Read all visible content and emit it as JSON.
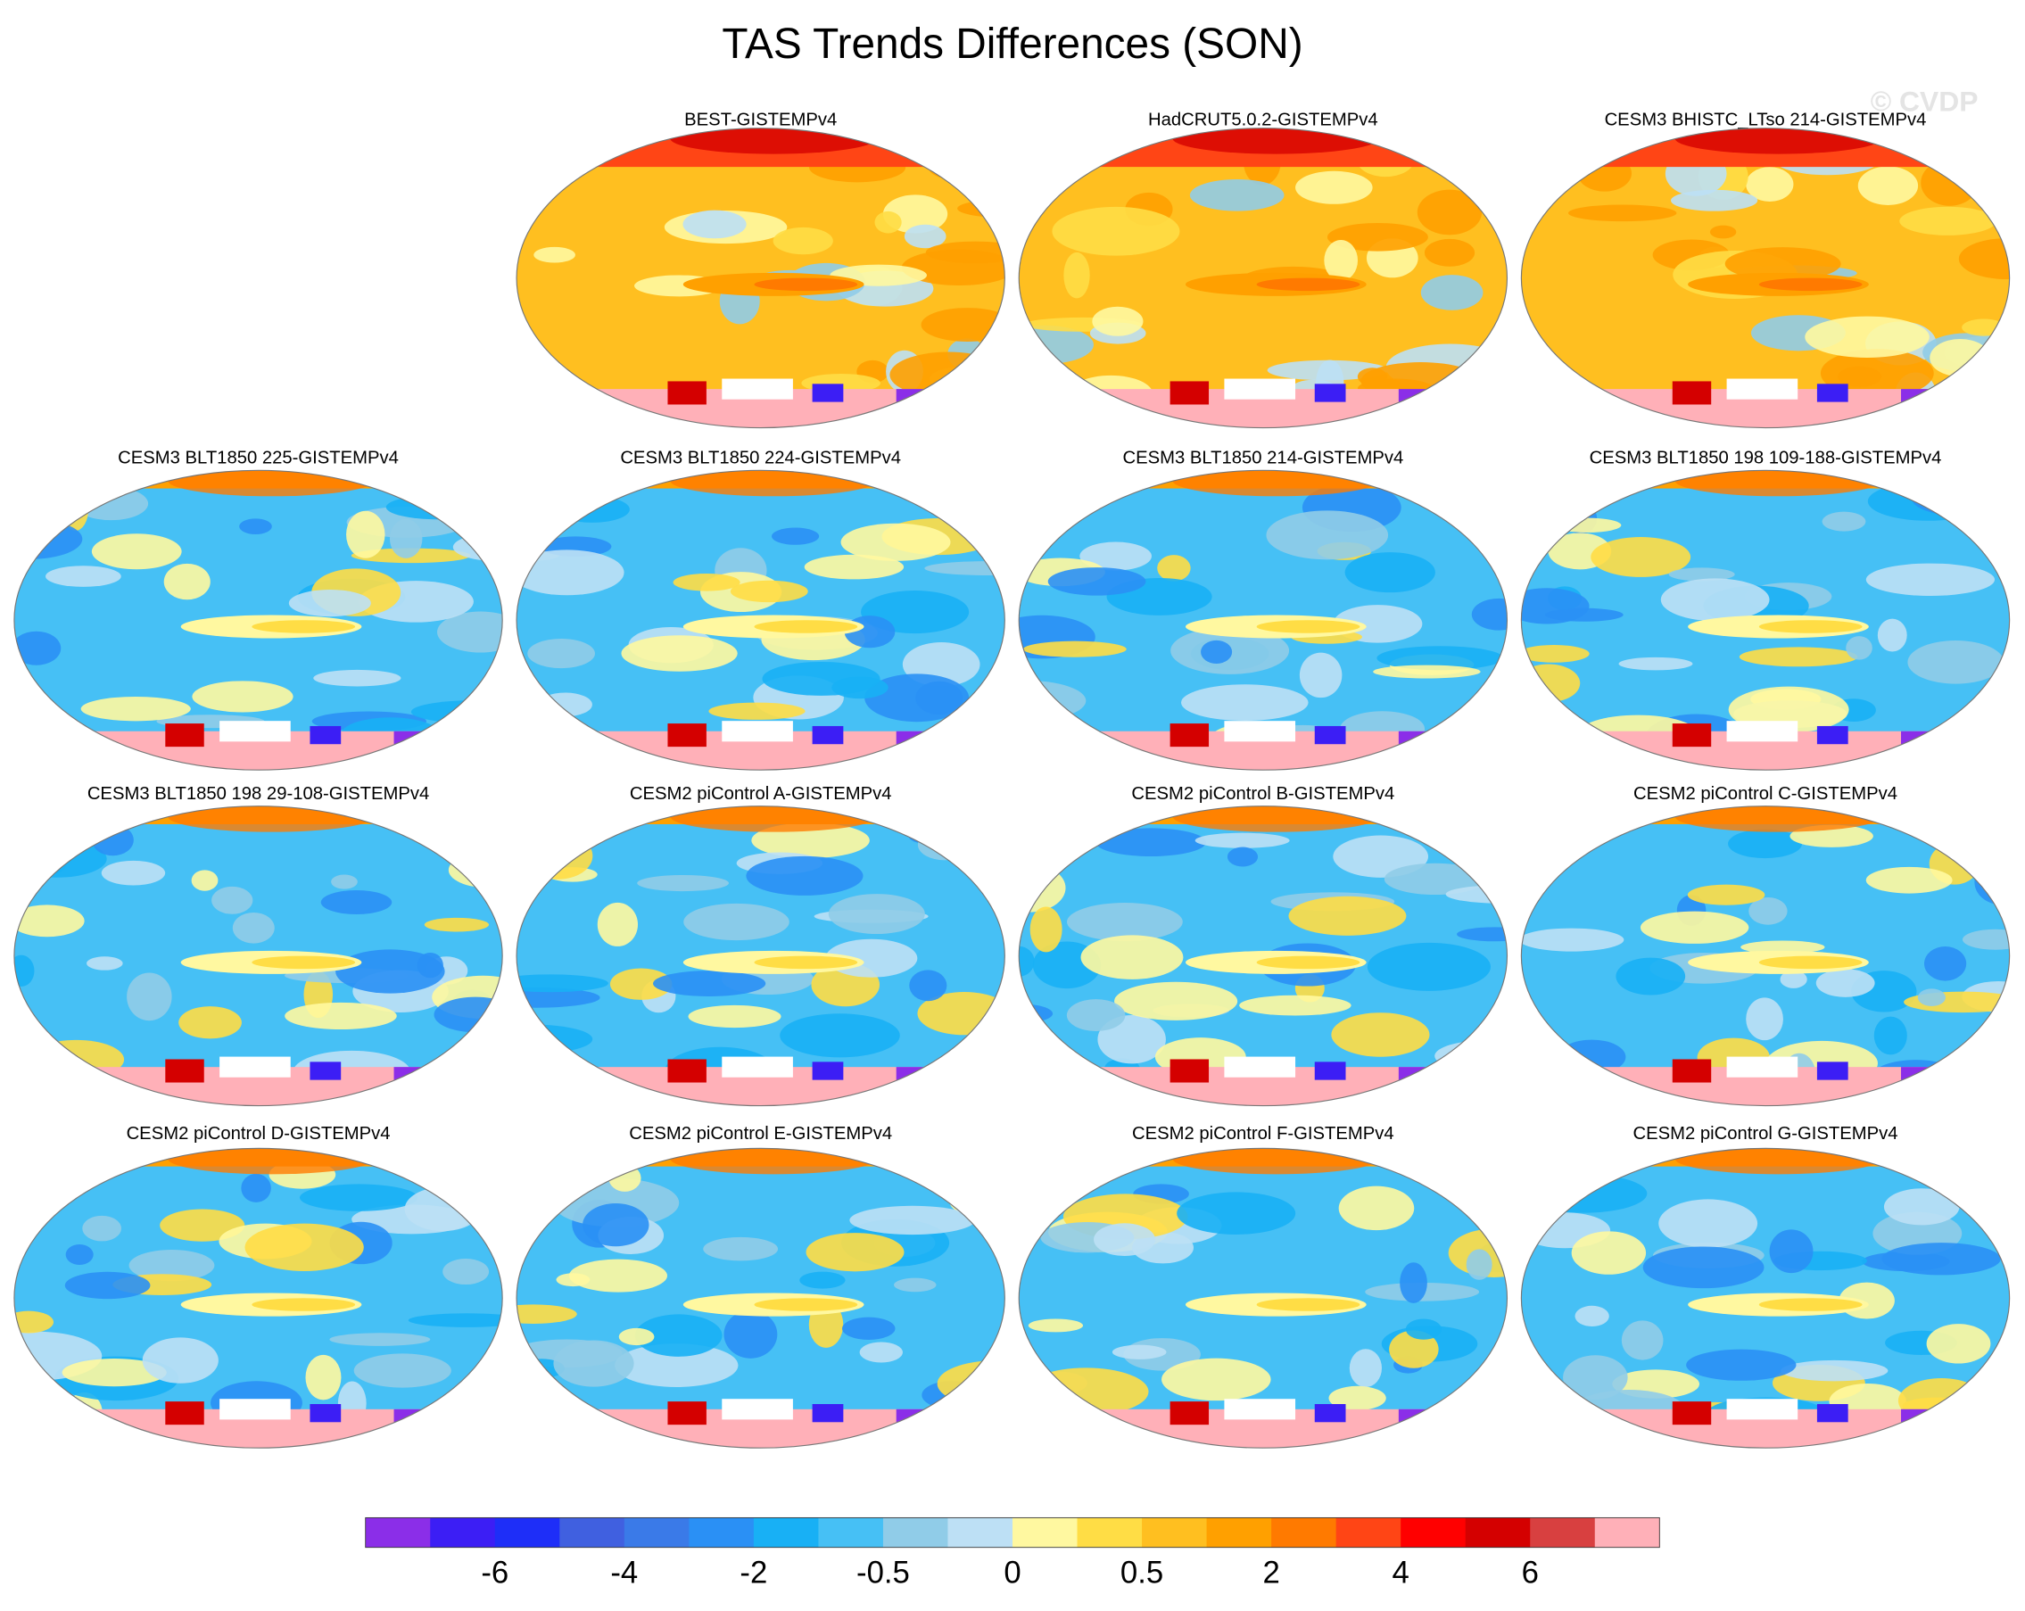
{
  "title": "TAS Trends Differences (SON)",
  "watermark": "© CVDP",
  "panels": [
    {
      "title": "BEST-GISTEMPv4"
    },
    {
      "title": "HadCRUT5.0.2-GISTEMPv4"
    },
    {
      "title": "CESM3 BHISTC_LTso 214-GISTEMPv4"
    },
    {
      "title": "CESM3 BLT1850 225-GISTEMPv4"
    },
    {
      "title": "CESM3 BLT1850 224-GISTEMPv4"
    },
    {
      "title": "CESM3 BLT1850 214-GISTEMPv4"
    },
    {
      "title": "CESM3 BLT1850 198 109-188-GISTEMPv4"
    },
    {
      "title": "CESM3 BLT1850 198 29-108-GISTEMPv4"
    },
    {
      "title": "CESM2 piControl A-GISTEMPv4"
    },
    {
      "title": "CESM2 piControl B-GISTEMPv4"
    },
    {
      "title": "CESM2 piControl C-GISTEMPv4"
    },
    {
      "title": "CESM2 piControl D-GISTEMPv4"
    },
    {
      "title": "CESM2 piControl E-GISTEMPv4"
    },
    {
      "title": "CESM2 piControl F-GISTEMPv4"
    },
    {
      "title": "CESM2 piControl G-GISTEMPv4"
    }
  ],
  "colorbar": {
    "colors": [
      "#8b2ee8",
      "#3c1ef5",
      "#1e2ef8",
      "#4060e0",
      "#3a7ae8",
      "#2a90f5",
      "#18b0f5",
      "#46c0f5",
      "#90cce8",
      "#bde0f5",
      "#fff8a0",
      "#ffdd45",
      "#ffbf20",
      "#ffa000",
      "#ff7a00",
      "#ff4515",
      "#ff0000",
      "#d40000",
      "#d84040",
      "#ffb0b8"
    ],
    "labels": [
      "-6",
      "-4",
      "-2",
      "-0.5",
      "0",
      "0.5",
      "2",
      "4",
      "6"
    ]
  }
}
